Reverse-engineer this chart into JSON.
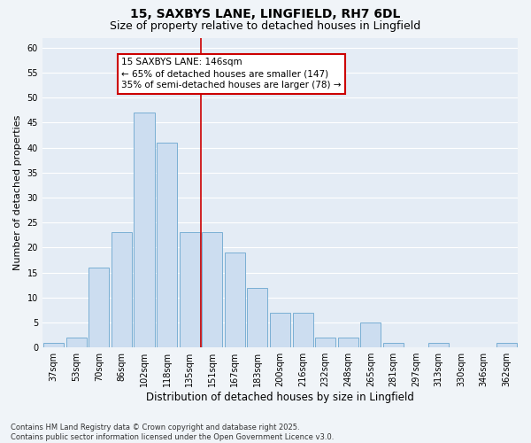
{
  "title": "15, SAXBYS LANE, LINGFIELD, RH7 6DL",
  "subtitle": "Size of property relative to detached houses in Lingfield",
  "xlabel": "Distribution of detached houses by size in Lingfield",
  "ylabel": "Number of detached properties",
  "categories": [
    "37sqm",
    "53sqm",
    "70sqm",
    "86sqm",
    "102sqm",
    "118sqm",
    "135sqm",
    "151sqm",
    "167sqm",
    "183sqm",
    "200sqm",
    "216sqm",
    "232sqm",
    "248sqm",
    "265sqm",
    "281sqm",
    "297sqm",
    "313sqm",
    "330sqm",
    "346sqm",
    "362sqm"
  ],
  "values": [
    1,
    2,
    16,
    23,
    47,
    41,
    23,
    23,
    19,
    12,
    7,
    7,
    2,
    2,
    5,
    1,
    0,
    1,
    0,
    0,
    1
  ],
  "bar_color": "#ccddf0",
  "bar_edge_color": "#7aafd4",
  "background_color": "#f0f4f8",
  "plot_bg_color": "#e4ecf5",
  "grid_color": "#ffffff",
  "vline_x": 6.5,
  "vline_color": "#cc0000",
  "annotation_title": "15 SAXBYS LANE: 146sqm",
  "annotation_line1": "← 65% of detached houses are smaller (147)",
  "annotation_line2": "35% of semi-detached houses are larger (78) →",
  "annotation_box_color": "#ffffff",
  "annotation_box_edge": "#cc0000",
  "ylim": [
    0,
    62
  ],
  "yticks": [
    0,
    5,
    10,
    15,
    20,
    25,
    30,
    35,
    40,
    45,
    50,
    55,
    60
  ],
  "footnote": "Contains HM Land Registry data © Crown copyright and database right 2025.\nContains public sector information licensed under the Open Government Licence v3.0.",
  "title_fontsize": 10,
  "subtitle_fontsize": 9,
  "xlabel_fontsize": 8.5,
  "ylabel_fontsize": 8,
  "tick_fontsize": 7,
  "annot_fontsize": 7.5
}
